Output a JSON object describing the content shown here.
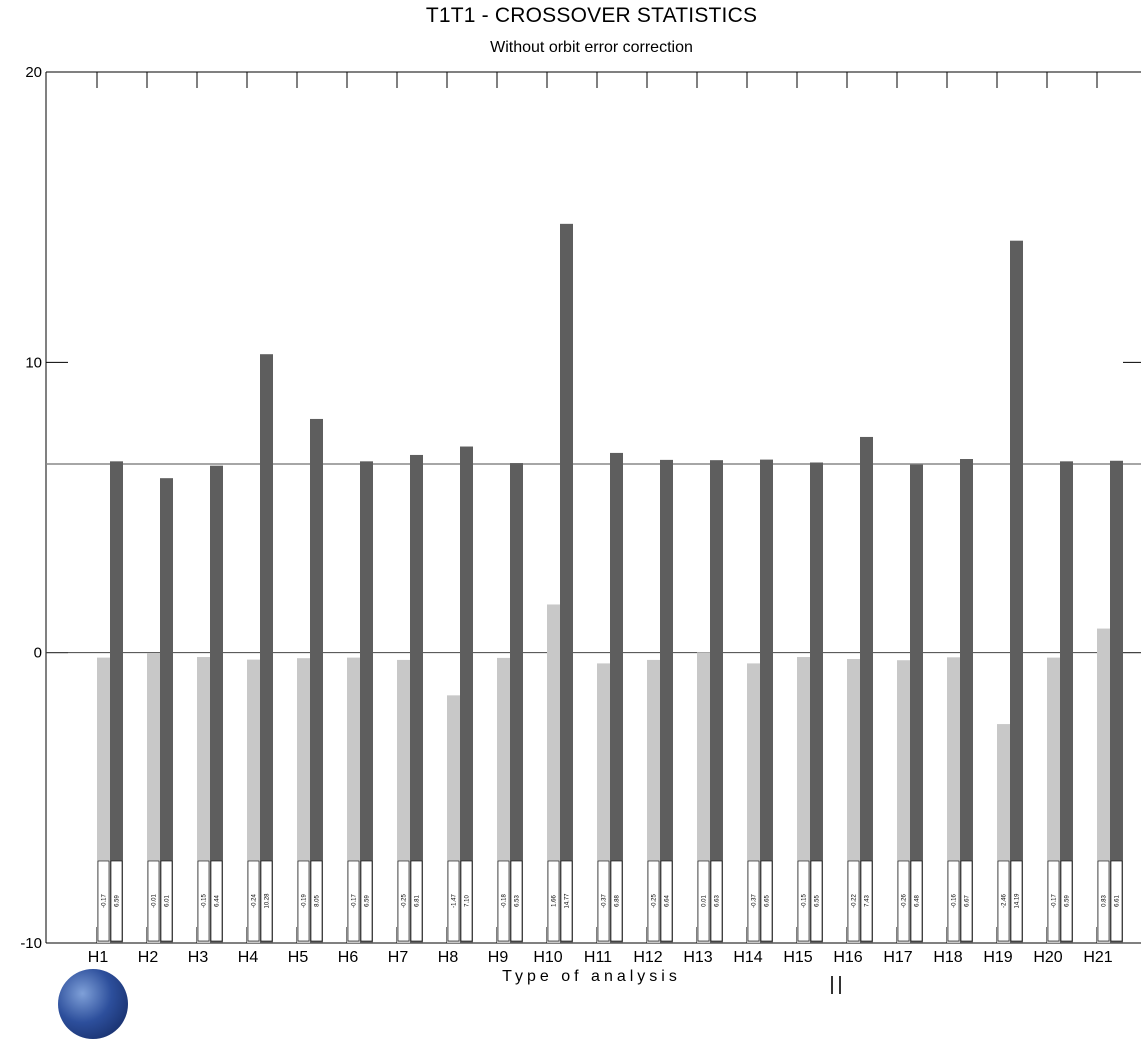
{
  "chart_data": {
    "type": "bar",
    "title": "T1T1 - CROSSOVER STATISTICS",
    "subtitle": "Without orbit error correction",
    "xlabel": "Type of analysis",
    "ylabel": "",
    "ylim": [
      -10,
      20
    ],
    "yticks": [
      -10,
      0,
      10,
      20
    ],
    "reference_line": 6.5,
    "categories": [
      "H1",
      "H2",
      "H3",
      "H4",
      "H5",
      "H6",
      "H7",
      "H8",
      "H9",
      "H10",
      "H11",
      "H12",
      "H13",
      "H14",
      "H15",
      "H16",
      "H17",
      "H18",
      "H19",
      "H20",
      "H21"
    ],
    "series": [
      {
        "color": "#c8c8c8",
        "values": [
          -0.17,
          -0.01,
          -0.15,
          -0.24,
          -0.19,
          -0.17,
          -0.25,
          -1.47,
          -0.18,
          1.66,
          -0.37,
          -0.25,
          0.01,
          -0.37,
          -0.15,
          -0.22,
          -0.26,
          -0.16,
          -2.46,
          -0.17,
          0.83
        ],
        "labels": [
          "-0.17",
          "-0.01",
          "-0.15",
          "-0.24",
          "-0.19",
          "-0.17",
          "-0.25",
          "-1.47",
          "-0.18",
          "1.66",
          "-0.37",
          "-0.25",
          "0.01",
          "-0.37",
          "-0.15",
          "-0.22",
          "-0.26",
          "-0.16",
          "-2.46",
          "-0.17",
          "0.83"
        ]
      },
      {
        "color": "#5e5e5e",
        "values": [
          6.59,
          6.01,
          6.44,
          10.28,
          8.05,
          6.59,
          6.81,
          7.1,
          6.53,
          14.77,
          6.88,
          6.64,
          6.63,
          6.65,
          6.55,
          7.43,
          6.48,
          6.67,
          14.19,
          6.59,
          6.61
        ],
        "labels": [
          "6.59",
          "6.01",
          "6.44",
          "10.28",
          "8.05",
          "6.59",
          "6.81",
          "7.10",
          "6.53",
          "14.77",
          "6.88",
          "6.64",
          "6.63",
          "6.65",
          "6.55",
          "7.43",
          "6.48",
          "6.67",
          "14.19",
          "6.59",
          "6.61"
        ]
      }
    ],
    "grid": false
  }
}
